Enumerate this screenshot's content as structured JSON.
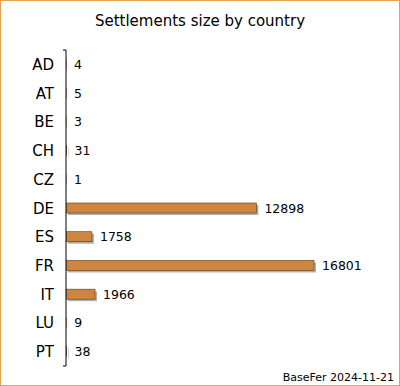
{
  "chart_data": {
    "type": "bar",
    "title": "Settlements size by country",
    "orientation": "horizontal",
    "categories": [
      "AD",
      "AT",
      "BE",
      "CH",
      "CZ",
      "DE",
      "ES",
      "FR",
      "IT",
      "LU",
      "PT"
    ],
    "values": [
      4,
      5,
      3,
      31,
      1,
      12898,
      1758,
      16801,
      1966,
      9,
      38
    ],
    "color": "#cd853f",
    "xlim": [
      0,
      16801
    ],
    "data_labels": true,
    "tick_labels": "y",
    "grid": false,
    "annotations": [
      "BaseFer 2024-11-21"
    ]
  }
}
